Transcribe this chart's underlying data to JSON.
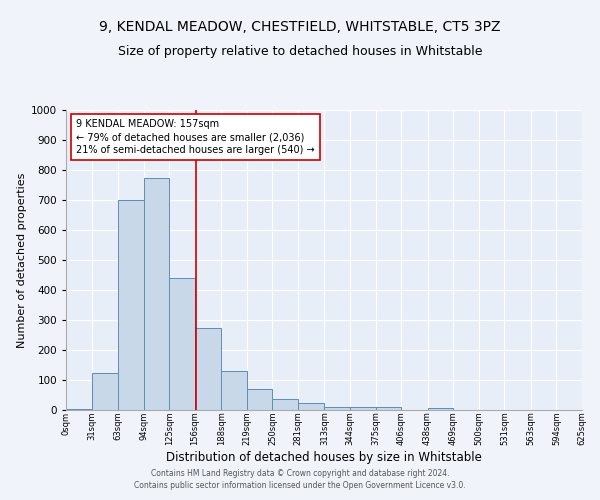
{
  "title1": "9, KENDAL MEADOW, CHESTFIELD, WHITSTABLE, CT5 3PZ",
  "title2": "Size of property relative to detached houses in Whitstable",
  "xlabel": "Distribution of detached houses by size in Whitstable",
  "ylabel": "Number of detached properties",
  "bar_left_edges": [
    0,
    31,
    63,
    94,
    125,
    156,
    188,
    219,
    250,
    281,
    313,
    344,
    375,
    406,
    438,
    469,
    500,
    531,
    563,
    594
  ],
  "bar_widths": [
    31,
    32,
    31,
    31,
    31,
    32,
    31,
    31,
    31,
    32,
    31,
    31,
    31,
    32,
    31,
    31,
    31,
    32,
    31,
    31
  ],
  "bar_heights": [
    5,
    125,
    700,
    775,
    440,
    275,
    130,
    70,
    38,
    22,
    10,
    10,
    10,
    0,
    8,
    0,
    0,
    0,
    0,
    0
  ],
  "xtick_labels": [
    "0sqm",
    "31sqm",
    "63sqm",
    "94sqm",
    "125sqm",
    "156sqm",
    "188sqm",
    "219sqm",
    "250sqm",
    "281sqm",
    "313sqm",
    "344sqm",
    "375sqm",
    "406sqm",
    "438sqm",
    "469sqm",
    "500sqm",
    "531sqm",
    "563sqm",
    "594sqm",
    "625sqm"
  ],
  "xtick_positions": [
    0,
    31,
    63,
    94,
    125,
    156,
    188,
    219,
    250,
    281,
    313,
    344,
    375,
    406,
    438,
    469,
    500,
    531,
    563,
    594,
    625
  ],
  "bar_color": "#c8d8e8",
  "bar_edge_color": "#5b8db8",
  "vline_x": 157,
  "vline_color": "#cc0000",
  "annotation_line1": "9 KENDAL MEADOW: 157sqm",
  "annotation_line2": "← 79% of detached houses are smaller (2,036)",
  "annotation_line3": "21% of semi-detached houses are larger (540) →",
  "annotation_box_color": "#ffffff",
  "annotation_box_edge": "#cc0000",
  "ylim": [
    0,
    1000
  ],
  "xlim": [
    0,
    625
  ],
  "background_color": "#e8eef8",
  "grid_color": "#ffffff",
  "footer1": "Contains HM Land Registry data © Crown copyright and database right 2024.",
  "footer2": "Contains public sector information licensed under the Open Government Licence v3.0.",
  "title1_fontsize": 10,
  "title2_fontsize": 9,
  "xlabel_fontsize": 8.5,
  "ylabel_fontsize": 8
}
